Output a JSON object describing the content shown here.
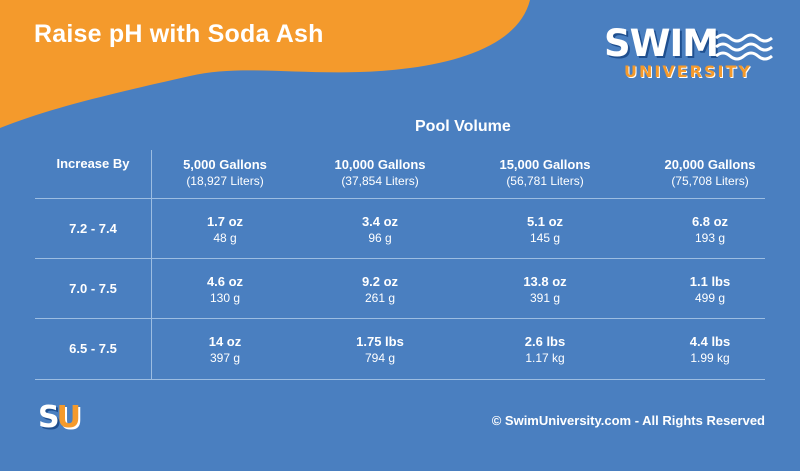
{
  "title": "Raise pH with Soda Ash",
  "logo": {
    "word": "SWIM",
    "sub": "UNIVERSITY"
  },
  "colors": {
    "background": "#4a7fc0",
    "orange": "#f49a2c",
    "text": "#ffffff",
    "rule": "#9cbde2"
  },
  "table": {
    "group_header": "Pool Volume",
    "row_header": "Increase By",
    "columns": [
      {
        "label": "5,000 Gallons",
        "sub": "(18,927 Liters)"
      },
      {
        "label": "10,000 Gallons",
        "sub": "(37,854 Liters)"
      },
      {
        "label": "15,000 Gallons",
        "sub": "(56,781 Liters)"
      },
      {
        "label": "20,000 Gallons",
        "sub": "(75,708 Liters)"
      }
    ],
    "rows": [
      {
        "label": "7.2 - 7.4",
        "cells": [
          {
            "top": "1.7 oz",
            "bot": "48 g"
          },
          {
            "top": "3.4 oz",
            "bot": "96 g"
          },
          {
            "top": "5.1 oz",
            "bot": "145 g"
          },
          {
            "top": "6.8 oz",
            "bot": "193 g"
          }
        ]
      },
      {
        "label": "7.0 - 7.5",
        "cells": [
          {
            "top": "4.6 oz",
            "bot": "130 g"
          },
          {
            "top": "9.2 oz",
            "bot": "261 g"
          },
          {
            "top": "13.8 oz",
            "bot": "391 g"
          },
          {
            "top": "1.1 lbs",
            "bot": "499 g"
          }
        ]
      },
      {
        "label": "6.5 - 7.5",
        "cells": [
          {
            "top": "14 oz",
            "bot": "397 g"
          },
          {
            "top": "1.75 lbs",
            "bot": "794 g"
          },
          {
            "top": "2.6 lbs",
            "bot": "1.17 kg"
          },
          {
            "top": "4.4 lbs",
            "bot": "1.99 kg"
          }
        ]
      }
    ]
  },
  "footer": {
    "badge_s": "S",
    "badge_u": "U",
    "copyright": "© SwimUniversity.com - All Rights Reserved"
  }
}
